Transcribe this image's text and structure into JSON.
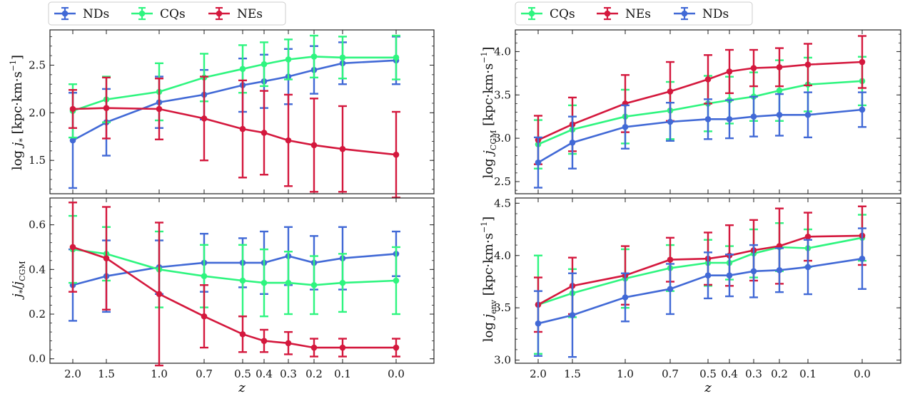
{
  "figure_left": {
    "legend": [
      "NDs",
      "CQs",
      "NEs"
    ],
    "xlabel": "z"
  },
  "figure_right": {
    "legend": [
      "CQs",
      "NEs",
      "NDs"
    ],
    "xlabel": "z"
  },
  "colors": {
    "NDs": "#4169d6",
    "CQs": "#2ef57f",
    "NEs": "#d4183d"
  },
  "chart_data": [
    {
      "id": "top-left",
      "type": "line",
      "ylabel": "log j* [kpc·km·s^-1]",
      "x_ticks": [
        "2.0",
        "1.5",
        "1.0",
        "0.7",
        "0.5",
        "0.4",
        "0.3",
        "0.2",
        "0.1",
        "0.0"
      ],
      "x": [
        2.0,
        1.5,
        1.0,
        0.7,
        0.5,
        0.4,
        0.3,
        0.2,
        0.1,
        0.0
      ],
      "ylim": [
        1.15,
        2.87
      ],
      "y_ticks": [
        1.5,
        2.0,
        2.5
      ],
      "series": [
        {
          "name": "NDs",
          "values": [
            1.71,
            1.9,
            2.11,
            2.19,
            2.29,
            2.33,
            2.38,
            2.45,
            2.52,
            2.55
          ],
          "err": [
            0.5,
            0.35,
            0.27,
            0.26,
            0.28,
            0.28,
            0.29,
            0.25,
            0.22,
            0.25
          ]
        },
        {
          "name": "CQs",
          "values": [
            2.02,
            2.14,
            2.22,
            2.37,
            2.46,
            2.51,
            2.56,
            2.59,
            2.58,
            2.58
          ],
          "err": [
            0.28,
            0.24,
            0.3,
            0.25,
            0.25,
            0.23,
            0.21,
            0.22,
            0.22,
            0.23
          ]
        },
        {
          "name": "NEs",
          "values": [
            2.04,
            2.05,
            2.04,
            1.94,
            1.83,
            1.79,
            1.71,
            1.66,
            1.62,
            1.56
          ],
          "err": [
            0.2,
            0.32,
            0.32,
            0.44,
            0.51,
            0.44,
            0.48,
            0.49,
            0.45,
            0.45
          ]
        }
      ]
    },
    {
      "id": "bottom-left",
      "type": "line",
      "ylabel": "j*/jCGM",
      "x_ticks": [
        "2.0",
        "1.5",
        "1.0",
        "0.7",
        "0.5",
        "0.4",
        "0.3",
        "0.2",
        "0.1",
        "0.0"
      ],
      "x": [
        2.0,
        1.5,
        1.0,
        0.7,
        0.5,
        0.4,
        0.3,
        0.2,
        0.1,
        0.0
      ],
      "ylim": [
        -0.02,
        0.72
      ],
      "y_ticks": [
        0.0,
        0.2,
        0.4,
        0.6
      ],
      "series": [
        {
          "name": "NDs",
          "values": [
            0.33,
            0.37,
            0.41,
            0.43,
            0.43,
            0.43,
            0.46,
            0.43,
            0.45,
            0.47
          ],
          "err": [
            0.16,
            0.16,
            0.12,
            0.13,
            0.11,
            0.14,
            0.13,
            0.12,
            0.14,
            0.1
          ]
        },
        {
          "name": "CQs",
          "values": [
            0.49,
            0.47,
            0.4,
            0.37,
            0.35,
            0.34,
            0.34,
            0.33,
            0.34,
            0.35
          ],
          "err": [
            0.15,
            0.12,
            0.17,
            0.14,
            0.16,
            0.15,
            0.14,
            0.13,
            0.13,
            0.15
          ]
        },
        {
          "name": "NEs",
          "values": [
            0.5,
            0.45,
            0.29,
            0.19,
            0.11,
            0.08,
            0.07,
            0.05,
            0.05,
            0.05
          ],
          "err": [
            0.2,
            0.23,
            0.32,
            0.14,
            0.08,
            0.05,
            0.05,
            0.04,
            0.04,
            0.04
          ]
        }
      ]
    },
    {
      "id": "top-right",
      "type": "line",
      "ylabel": "log jCGM [kpc·km·s^-1]",
      "x_ticks": [
        "2.0",
        "1.5",
        "1.0",
        "0.7",
        "0.5",
        "0.4",
        "0.3",
        "0.2",
        "0.1",
        "0.0"
      ],
      "x": [
        2.0,
        1.5,
        1.0,
        0.7,
        0.5,
        0.4,
        0.3,
        0.2,
        0.1,
        0.0
      ],
      "ylim": [
        2.36,
        4.25
      ],
      "y_ticks": [
        2.5,
        3.0,
        3.5,
        4.0
      ],
      "series": [
        {
          "name": "CQs",
          "values": [
            2.93,
            3.1,
            3.25,
            3.32,
            3.4,
            3.44,
            3.48,
            3.55,
            3.62,
            3.66
          ],
          "err": [
            0.28,
            0.28,
            0.31,
            0.33,
            0.32,
            0.27,
            0.28,
            0.35,
            0.31,
            0.28
          ]
        },
        {
          "name": "NEs",
          "values": [
            2.98,
            3.16,
            3.4,
            3.54,
            3.68,
            3.77,
            3.81,
            3.82,
            3.85,
            3.88
          ],
          "err": [
            0.28,
            0.31,
            0.33,
            0.34,
            0.28,
            0.25,
            0.21,
            0.22,
            0.24,
            0.3
          ]
        },
        {
          "name": "NDs",
          "values": [
            2.72,
            2.95,
            3.13,
            3.19,
            3.22,
            3.22,
            3.25,
            3.27,
            3.27,
            3.33
          ],
          "err": [
            0.29,
            0.3,
            0.25,
            0.22,
            0.23,
            0.22,
            0.23,
            0.24,
            0.26,
            0.2
          ]
        }
      ]
    },
    {
      "id": "bottom-right",
      "type": "line",
      "ylabel": "log jenv [kpc·km·s^-1]",
      "x_ticks": [
        "2.0",
        "1.5",
        "1.0",
        "0.7",
        "0.5",
        "0.4",
        "0.3",
        "0.2",
        "0.1",
        "0.0"
      ],
      "x": [
        2.0,
        1.5,
        1.0,
        0.7,
        0.5,
        0.4,
        0.3,
        0.2,
        0.1,
        0.0
      ],
      "ylim": [
        2.97,
        4.55
      ],
      "y_ticks": [
        3.0,
        3.5,
        4.0,
        4.5
      ],
      "series": [
        {
          "name": "CQs",
          "values": [
            3.53,
            3.64,
            3.78,
            3.88,
            3.93,
            3.93,
            4.02,
            4.08,
            4.07,
            4.17
          ],
          "err": [
            0.47,
            0.23,
            0.28,
            0.22,
            0.22,
            0.16,
            0.23,
            0.23,
            0.18,
            0.22
          ]
        },
        {
          "name": "NEs",
          "values": [
            3.53,
            3.71,
            3.81,
            3.96,
            3.97,
            4.0,
            4.05,
            4.09,
            4.18,
            4.19
          ],
          "err": [
            0.26,
            0.27,
            0.28,
            0.21,
            0.25,
            0.29,
            0.29,
            0.36,
            0.23,
            0.28
          ]
        },
        {
          "name": "NDs",
          "values": [
            3.35,
            3.43,
            3.6,
            3.68,
            3.81,
            3.81,
            3.85,
            3.86,
            3.89,
            3.97
          ],
          "err": [
            0.31,
            0.4,
            0.23,
            0.24,
            0.22,
            0.2,
            0.25,
            0.21,
            0.26,
            0.29
          ]
        }
      ]
    }
  ]
}
